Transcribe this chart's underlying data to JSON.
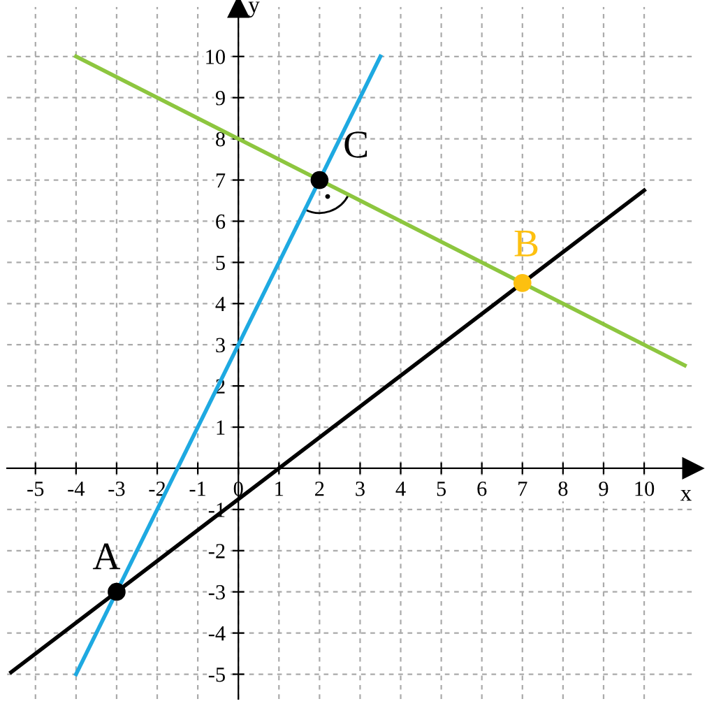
{
  "chart_data": {
    "type": "line",
    "xlabel": "x",
    "ylabel": "y",
    "xlim": [
      -5.7,
      11.2
    ],
    "ylim": [
      -5.6,
      11.2
    ],
    "xticks": [
      -5,
      -4,
      -3,
      -2,
      -1,
      0,
      1,
      2,
      3,
      4,
      5,
      6,
      7,
      8,
      9,
      10
    ],
    "yticks": [
      -5,
      -4,
      -3,
      -2,
      -1,
      1,
      2,
      3,
      4,
      5,
      6,
      7,
      8,
      9,
      10
    ],
    "grid": true,
    "line_style": "solid",
    "marker": "none",
    "series": [
      {
        "color": "#000000",
        "x": [
          -5.6,
          10
        ],
        "values": [
          -4.95,
          6.75
        ]
      },
      {
        "color": "#1ea9e1",
        "x": [
          -4,
          3.5
        ],
        "values": [
          -5,
          10
        ]
      },
      {
        "color": "#8dc63f",
        "x": [
          -4,
          11
        ],
        "values": [
          10,
          2.5
        ]
      },
      {
        "type": "scatter",
        "marker": "circle",
        "color": "#000000",
        "x": [
          -3,
          2
        ],
        "values": [
          -3,
          7
        ]
      },
      {
        "type": "scatter",
        "marker": "circle",
        "color": "#fdc010",
        "x": [
          7
        ],
        "values": [
          4.5
        ]
      }
    ],
    "annotations": [
      {
        "text": "A",
        "x": -3,
        "y": -3
      },
      {
        "text": "C",
        "x": 2,
        "y": 7
      },
      {
        "text": "B",
        "x": 7,
        "y": 4.5
      }
    ]
  }
}
